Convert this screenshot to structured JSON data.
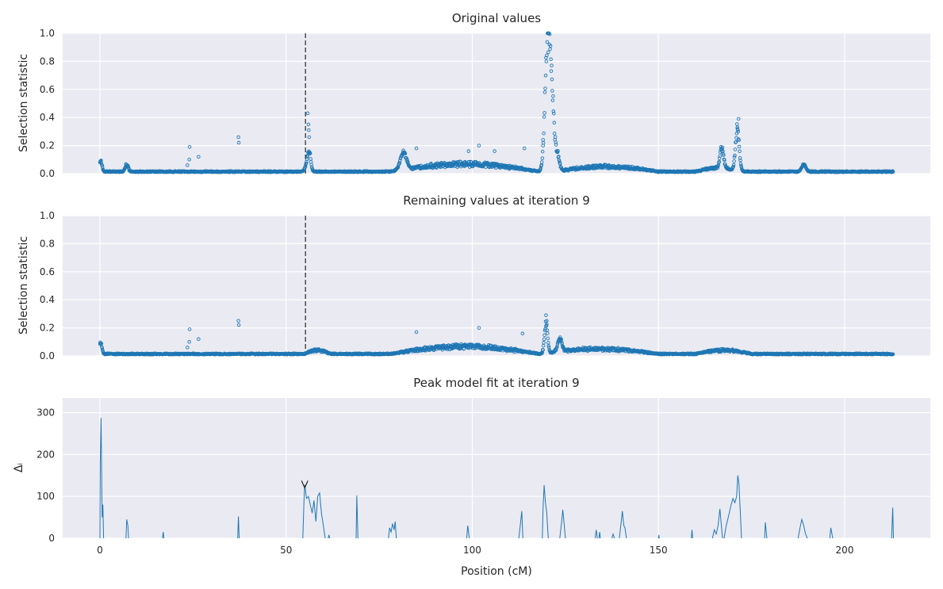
{
  "chart_data": [
    {
      "type": "scatter",
      "title": "Original values",
      "ylabel": "Selection statistic",
      "xlabel": "",
      "xlim": [
        -10,
        223
      ],
      "ylim": [
        0,
        1.0
      ],
      "xticks": [
        0,
        50,
        100,
        150,
        200
      ],
      "yticks": [
        0.0,
        0.2,
        0.4,
        0.6,
        0.8,
        1.0
      ],
      "ytick_labels": [
        "0.0",
        "0.2",
        "0.4",
        "0.6",
        "0.8",
        "1.0"
      ],
      "marker": "open-circle",
      "color": "#1f77b4",
      "grid": true,
      "vline_dashed_x": 55.2,
      "x_range": [
        0,
        213
      ],
      "baseline": 0.01,
      "peaks": [
        {
          "x": 0.2,
          "height": 0.08,
          "width": 0.5
        },
        {
          "x": 7.2,
          "height": 0.05,
          "width": 0.6
        },
        {
          "x": 55.8,
          "height": 0.08,
          "width": 0.8
        },
        {
          "x": 56.3,
          "height": 0.1,
          "width": 0.5
        },
        {
          "x": 81.5,
          "height": 0.12,
          "width": 1.2
        },
        {
          "x": 120.3,
          "height": 0.95,
          "width": 1.0
        },
        {
          "x": 121.5,
          "height": 0.35,
          "width": 0.8
        },
        {
          "x": 122.8,
          "height": 0.12,
          "width": 0.8
        },
        {
          "x": 167.0,
          "height": 0.14,
          "width": 0.7
        },
        {
          "x": 171.2,
          "height": 0.3,
          "width": 0.7
        },
        {
          "x": 189.0,
          "height": 0.05,
          "width": 0.8
        }
      ],
      "bumps": [
        {
          "from": 78,
          "to": 118,
          "height": 0.06
        },
        {
          "from": 122,
          "to": 150,
          "height": 0.04
        },
        {
          "from": 160,
          "to": 172,
          "height": 0.03
        }
      ],
      "outliers": [
        {
          "x": 23.5,
          "y": 0.06
        },
        {
          "x": 24.0,
          "y": 0.1
        },
        {
          "x": 24.1,
          "y": 0.19
        },
        {
          "x": 26.5,
          "y": 0.12
        },
        {
          "x": 37.2,
          "y": 0.26
        },
        {
          "x": 37.3,
          "y": 0.22
        },
        {
          "x": 55.8,
          "y": 0.43
        },
        {
          "x": 56.0,
          "y": 0.35
        },
        {
          "x": 56.1,
          "y": 0.31
        },
        {
          "x": 56.2,
          "y": 0.26
        },
        {
          "x": 85.0,
          "y": 0.18
        },
        {
          "x": 99.0,
          "y": 0.16
        },
        {
          "x": 101.8,
          "y": 0.2
        },
        {
          "x": 106.0,
          "y": 0.16
        },
        {
          "x": 114.0,
          "y": 0.18
        },
        {
          "x": 119.0,
          "y": 0.24
        },
        {
          "x": 171.5,
          "y": 0.39
        },
        {
          "x": 171.2,
          "y": 0.33
        }
      ]
    },
    {
      "type": "scatter",
      "title": "Remaining values at iteration 9",
      "ylabel": "Selection statistic",
      "xlabel": "",
      "xlim": [
        -10,
        223
      ],
      "ylim": [
        0,
        1.0
      ],
      "xticks": [
        0,
        50,
        100,
        150,
        200
      ],
      "yticks": [
        0.0,
        0.2,
        0.4,
        0.6,
        0.8,
        1.0
      ],
      "ytick_labels": [
        "0.0",
        "0.2",
        "0.4",
        "0.6",
        "0.8",
        "1.0"
      ],
      "marker": "open-circle",
      "color": "#1f77b4",
      "grid": true,
      "vline_dashed_x": 55.2,
      "x_range": [
        0,
        213
      ],
      "baseline": 0.01,
      "peaks": [
        {
          "x": 0.2,
          "height": 0.08,
          "width": 0.5
        },
        {
          "x": 119.8,
          "height": 0.2,
          "width": 0.6
        },
        {
          "x": 123.5,
          "height": 0.09,
          "width": 0.8
        }
      ],
      "bumps": [
        {
          "from": 55,
          "to": 62,
          "height": 0.03
        },
        {
          "from": 78,
          "to": 118,
          "height": 0.06
        },
        {
          "from": 118,
          "to": 150,
          "height": 0.04
        },
        {
          "from": 160,
          "to": 175,
          "height": 0.03
        }
      ],
      "outliers": [
        {
          "x": 23.5,
          "y": 0.06
        },
        {
          "x": 24.0,
          "y": 0.1
        },
        {
          "x": 24.1,
          "y": 0.19
        },
        {
          "x": 26.5,
          "y": 0.12
        },
        {
          "x": 37.2,
          "y": 0.25
        },
        {
          "x": 37.3,
          "y": 0.22
        },
        {
          "x": 85.0,
          "y": 0.17
        },
        {
          "x": 101.8,
          "y": 0.2
        },
        {
          "x": 113.5,
          "y": 0.16
        },
        {
          "x": 119.8,
          "y": 0.29
        },
        {
          "x": 120.0,
          "y": 0.25
        }
      ]
    },
    {
      "type": "line",
      "title": "Peak model fit at iteration 9",
      "ylabel": "Δᵢ",
      "xlabel": "Position (cM)",
      "xlim": [
        -10,
        223
      ],
      "ylim": [
        0,
        335
      ],
      "xticks": [
        0,
        50,
        100,
        150,
        200
      ],
      "yticks": [
        0,
        100,
        200,
        300
      ],
      "ytick_labels": [
        "0",
        "100",
        "200",
        "300"
      ],
      "color": "#1f77b4",
      "grid": true,
      "marker_annotation": {
        "x": 55.0,
        "y": 128,
        "symbol": "v"
      },
      "segments": [
        [
          [
            0.0,
            0
          ],
          [
            0.1,
            180
          ],
          [
            0.3,
            287
          ],
          [
            0.6,
            50
          ],
          [
            0.8,
            80
          ],
          [
            1.0,
            0
          ]
        ],
        [
          [
            7.0,
            0
          ],
          [
            7.2,
            45
          ],
          [
            7.5,
            30
          ],
          [
            7.7,
            0
          ]
        ],
        [
          [
            16.8,
            0
          ],
          [
            17.0,
            15
          ],
          [
            17.2,
            0
          ]
        ],
        [
          [
            37.0,
            0
          ],
          [
            37.2,
            52
          ],
          [
            37.4,
            0
          ]
        ],
        [
          [
            54.5,
            0
          ],
          [
            54.8,
            90
          ],
          [
            55.0,
            128
          ],
          [
            55.5,
            95
          ],
          [
            56.0,
            100
          ],
          [
            56.5,
            80
          ],
          [
            57.0,
            60
          ],
          [
            57.5,
            90
          ],
          [
            58.0,
            40
          ],
          [
            58.5,
            100
          ],
          [
            59.0,
            108
          ],
          [
            59.5,
            60
          ],
          [
            60.0,
            30
          ],
          [
            60.5,
            0
          ]
        ],
        [
          [
            61.3,
            0
          ],
          [
            61.5,
            8
          ],
          [
            61.7,
            0
          ]
        ],
        [
          [
            68.8,
            0
          ],
          [
            69.0,
            102
          ],
          [
            69.3,
            0
          ]
        ],
        [
          [
            77.5,
            0
          ],
          [
            77.8,
            25
          ],
          [
            78.2,
            15
          ],
          [
            78.6,
            35
          ],
          [
            79.0,
            20
          ],
          [
            79.3,
            40
          ],
          [
            79.6,
            0
          ]
        ],
        [
          [
            98.5,
            0
          ],
          [
            98.8,
            30
          ],
          [
            99.2,
            0
          ]
        ],
        [
          [
            112.5,
            0
          ],
          [
            113.0,
            40
          ],
          [
            113.3,
            65
          ],
          [
            113.6,
            0
          ]
        ],
        [
          [
            118.8,
            0
          ],
          [
            119.0,
            70
          ],
          [
            119.3,
            127
          ],
          [
            119.6,
            90
          ],
          [
            120.0,
            60
          ],
          [
            120.4,
            0
          ]
        ],
        [
          [
            123.5,
            0
          ],
          [
            124.0,
            40
          ],
          [
            124.3,
            68
          ],
          [
            124.7,
            30
          ],
          [
            125.0,
            0
          ]
        ],
        [
          [
            133.0,
            0
          ],
          [
            133.3,
            20
          ],
          [
            133.6,
            0
          ]
        ],
        [
          [
            134.0,
            0
          ],
          [
            134.2,
            15
          ],
          [
            134.4,
            0
          ]
        ],
        [
          [
            137.5,
            0
          ],
          [
            137.8,
            10
          ],
          [
            138.2,
            0
          ]
        ],
        [
          [
            139.5,
            0
          ],
          [
            140.0,
            40
          ],
          [
            140.3,
            65
          ],
          [
            140.7,
            30
          ],
          [
            141.0,
            25
          ],
          [
            141.4,
            0
          ]
        ],
        [
          [
            150.0,
            0
          ],
          [
            150.1,
            8
          ],
          [
            150.2,
            0
          ]
        ],
        [
          [
            158.8,
            0
          ],
          [
            159.0,
            20
          ],
          [
            159.2,
            0
          ]
        ],
        [
          [
            164.5,
            0
          ],
          [
            165.0,
            20
          ],
          [
            165.5,
            10
          ],
          [
            166.0,
            30
          ],
          [
            166.5,
            70
          ],
          [
            166.8,
            40
          ],
          [
            167.2,
            0
          ]
        ],
        [
          [
            167.6,
            0
          ],
          [
            168.2,
            30
          ],
          [
            169.0,
            60
          ],
          [
            169.5,
            80
          ],
          [
            170.0,
            95
          ],
          [
            170.5,
            85
          ],
          [
            171.0,
            100
          ],
          [
            171.3,
            150
          ],
          [
            171.6,
            130
          ],
          [
            172.0,
            60
          ],
          [
            172.3,
            0
          ]
        ],
        [
          [
            178.5,
            0
          ],
          [
            178.7,
            38
          ],
          [
            178.9,
            20
          ],
          [
            179.1,
            0
          ]
        ],
        [
          [
            187.5,
            0
          ],
          [
            188.0,
            25
          ],
          [
            188.5,
            45
          ],
          [
            189.0,
            30
          ],
          [
            189.5,
            10
          ],
          [
            190.0,
            0
          ]
        ],
        [
          [
            196.0,
            0
          ],
          [
            196.3,
            25
          ],
          [
            196.6,
            10
          ],
          [
            196.8,
            0
          ]
        ],
        [
          [
            212.6,
            0
          ],
          [
            212.9,
            73
          ],
          [
            213.1,
            0
          ]
        ]
      ]
    }
  ]
}
